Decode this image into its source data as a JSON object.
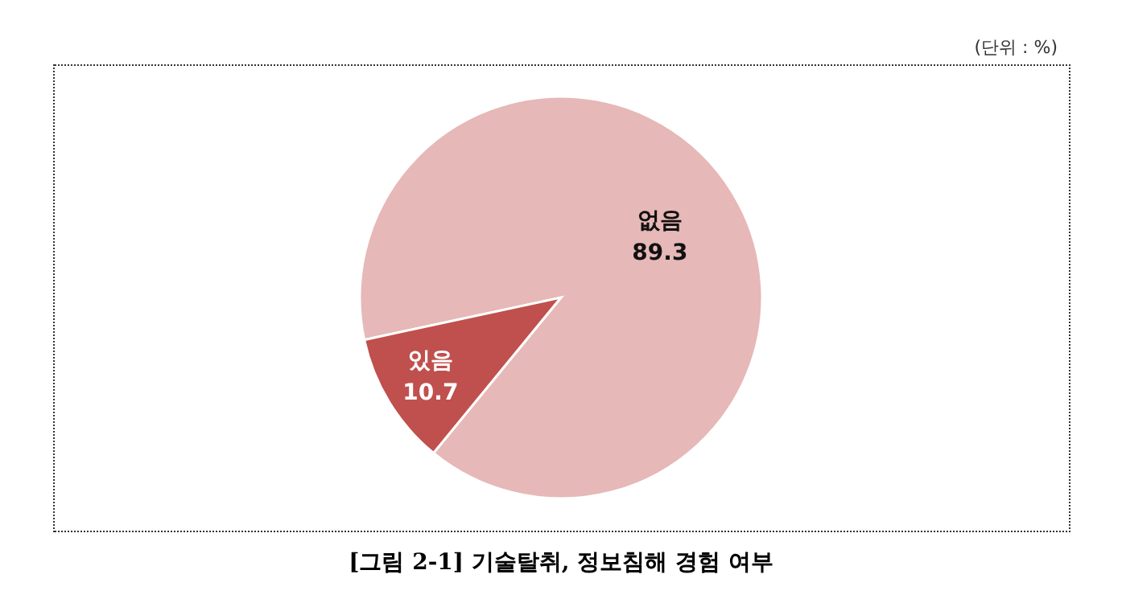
{
  "chart_data": {
    "type": "pie",
    "title": "[그림 2-1] 기술탈취, 정보침해 경험 여부",
    "annotations": [
      "(단위 : %)"
    ],
    "categories": [
      "없음",
      "있음"
    ],
    "values": [
      89.3,
      10.7
    ],
    "colors": [
      "#e6b8b7",
      "#c0504d"
    ],
    "data_labels": true
  }
}
